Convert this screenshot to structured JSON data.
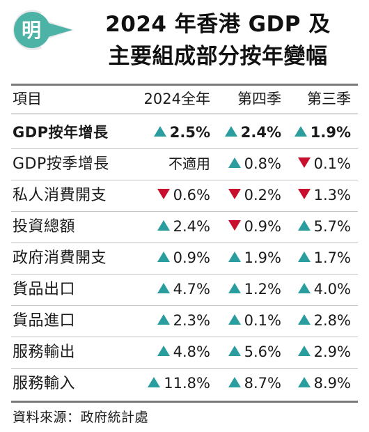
{
  "title_line1": "2024 年香港 GDP 及",
  "title_line2": "主要組成部分按年變幅",
  "logo": {
    "glyph": "明",
    "color": "#4cb3a6"
  },
  "colors": {
    "up": "#2a9d9f",
    "down": "#c8102e"
  },
  "chart_data": {
    "type": "table",
    "columns": [
      "項目",
      "2024全年",
      "第四季",
      "第三季"
    ],
    "rows": [
      {
        "label": "GDP按年增長",
        "bold": true,
        "cells": [
          {
            "text": "2.5%",
            "dir": "up"
          },
          {
            "text": "2.4%",
            "dir": "up"
          },
          {
            "text": "1.9%",
            "dir": "up"
          }
        ]
      },
      {
        "label": "GDP按季增長",
        "cells": [
          {
            "text": "不適用",
            "dir": "none"
          },
          {
            "text": "0.8%",
            "dir": "up"
          },
          {
            "text": "0.1%",
            "dir": "down"
          }
        ]
      },
      {
        "label": "私人消費開支",
        "cells": [
          {
            "text": "0.6%",
            "dir": "down"
          },
          {
            "text": "0.2%",
            "dir": "down"
          },
          {
            "text": "1.3%",
            "dir": "down"
          }
        ]
      },
      {
        "label": "投資總額",
        "cells": [
          {
            "text": "2.4%",
            "dir": "up"
          },
          {
            "text": "0.9%",
            "dir": "down"
          },
          {
            "text": "5.7%",
            "dir": "up"
          }
        ]
      },
      {
        "label": "政府消費開支",
        "cells": [
          {
            "text": "0.9%",
            "dir": "up"
          },
          {
            "text": "1.9%",
            "dir": "up"
          },
          {
            "text": "1.7%",
            "dir": "up"
          }
        ]
      },
      {
        "label": "貨品出口",
        "cells": [
          {
            "text": "4.7%",
            "dir": "up"
          },
          {
            "text": "1.2%",
            "dir": "up"
          },
          {
            "text": "4.0%",
            "dir": "up"
          }
        ]
      },
      {
        "label": "貨品進口",
        "cells": [
          {
            "text": "2.3%",
            "dir": "up"
          },
          {
            "text": "0.1%",
            "dir": "up"
          },
          {
            "text": "2.8%",
            "dir": "up"
          }
        ]
      },
      {
        "label": "服務輸出",
        "cells": [
          {
            "text": "4.8%",
            "dir": "up"
          },
          {
            "text": "5.6%",
            "dir": "up"
          },
          {
            "text": "2.9%",
            "dir": "up"
          }
        ]
      },
      {
        "label": "服務輸入",
        "cells": [
          {
            "text": "11.8%",
            "dir": "up"
          },
          {
            "text": "8.7%",
            "dir": "up"
          },
          {
            "text": "8.9%",
            "dir": "up"
          }
        ]
      }
    ]
  },
  "source": "資料來源：政府統計處"
}
